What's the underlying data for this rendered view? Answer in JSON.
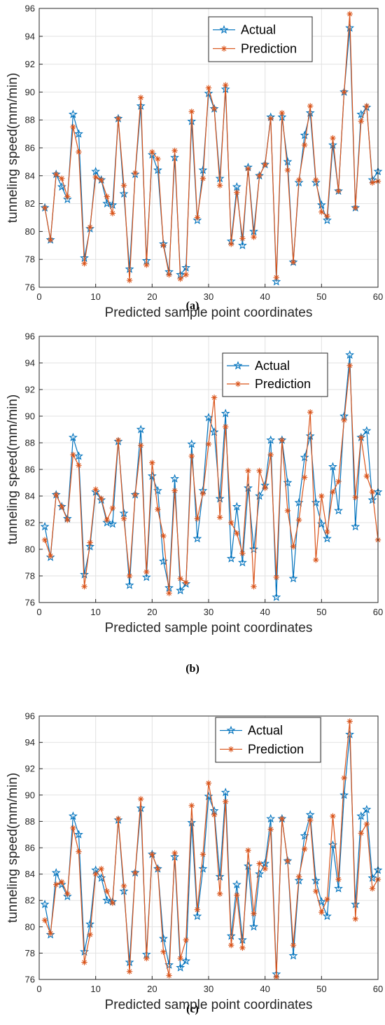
{
  "captions": [
    "(a)",
    "(b)",
    "(c)"
  ],
  "chart_data": [
    {
      "type": "line",
      "panel_label": "(a)",
      "xlabel": "Predicted sample point coordinates",
      "ylabel": "tunneling speed(mm/min)",
      "xlim": [
        0,
        60
      ],
      "ylim": [
        76,
        96
      ],
      "xticks": [
        0,
        10,
        20,
        30,
        40,
        50,
        60
      ],
      "yticks": [
        76,
        78,
        80,
        82,
        84,
        86,
        88,
        90,
        92,
        94,
        96
      ],
      "grid": true,
      "legend": "top-right",
      "x": [
        1,
        2,
        3,
        4,
        5,
        6,
        7,
        8,
        9,
        10,
        11,
        12,
        13,
        14,
        15,
        16,
        17,
        18,
        19,
        20,
        21,
        22,
        23,
        24,
        25,
        26,
        27,
        28,
        29,
        30,
        31,
        32,
        33,
        34,
        35,
        36,
        37,
        38,
        39,
        40,
        41,
        42,
        43,
        44,
        45,
        46,
        47,
        48,
        49,
        50,
        51,
        52,
        53,
        54,
        55,
        56,
        57,
        58,
        59,
        60
      ],
      "series": [
        {
          "name": "Actual",
          "color": "#0072BD",
          "marker": "pentagram",
          "values": [
            81.7,
            79.4,
            84.1,
            83.2,
            82.3,
            88.4,
            87.0,
            78.1,
            80.2,
            84.3,
            83.7,
            82.0,
            81.9,
            88.1,
            82.7,
            77.3,
            84.1,
            89.0,
            77.9,
            85.5,
            84.4,
            79.1,
            77.1,
            85.3,
            76.9,
            77.4,
            87.9,
            80.8,
            84.4,
            89.9,
            88.8,
            83.8,
            90.2,
            79.3,
            83.2,
            79.0,
            84.6,
            80.0,
            84.0,
            84.8,
            88.2,
            76.4,
            88.2,
            85.0,
            77.8,
            83.5,
            86.9,
            88.5,
            83.5,
            81.9,
            80.8,
            86.2,
            82.9,
            90.0,
            94.6,
            81.7,
            88.4,
            88.9,
            83.7,
            84.3
          ]
        },
        {
          "name": "Prediction",
          "color": "#D95319",
          "marker": "asterisk",
          "values": [
            81.7,
            79.4,
            84.1,
            83.8,
            82.5,
            87.5,
            85.7,
            77.7,
            80.3,
            83.9,
            83.7,
            82.5,
            81.3,
            88.1,
            83.3,
            76.5,
            84.2,
            89.6,
            77.6,
            85.7,
            85.2,
            79.0,
            76.9,
            85.8,
            76.6,
            76.9,
            88.6,
            81.0,
            83.8,
            90.3,
            88.8,
            83.3,
            90.5,
            79.1,
            82.8,
            79.5,
            84.5,
            79.6,
            84.0,
            84.8,
            88.1,
            76.7,
            88.5,
            84.4,
            77.8,
            83.7,
            86.2,
            89.0,
            83.7,
            81.4,
            81.1,
            86.7,
            82.9,
            90.0,
            95.6,
            81.7,
            87.9,
            89.0,
            83.5,
            83.6
          ]
        }
      ]
    },
    {
      "type": "line",
      "panel_label": "(b)",
      "xlabel": "Predicted sample point coordinates",
      "ylabel": "tunneling speed(mm/min)",
      "xlim": [
        0,
        60
      ],
      "ylim": [
        76,
        96
      ],
      "xticks": [
        0,
        10,
        20,
        30,
        40,
        50,
        60
      ],
      "yticks": [
        76,
        78,
        80,
        82,
        84,
        86,
        88,
        90,
        92,
        94,
        96
      ],
      "grid": true,
      "legend": "top-right",
      "x": [
        1,
        2,
        3,
        4,
        5,
        6,
        7,
        8,
        9,
        10,
        11,
        12,
        13,
        14,
        15,
        16,
        17,
        18,
        19,
        20,
        21,
        22,
        23,
        24,
        25,
        26,
        27,
        28,
        29,
        30,
        31,
        32,
        33,
        34,
        35,
        36,
        37,
        38,
        39,
        40,
        41,
        42,
        43,
        44,
        45,
        46,
        47,
        48,
        49,
        50,
        51,
        52,
        53,
        54,
        55,
        56,
        57,
        58,
        59,
        60
      ],
      "series": [
        {
          "name": "Actual",
          "color": "#0072BD",
          "marker": "pentagram",
          "values": [
            81.7,
            79.4,
            84.1,
            83.2,
            82.3,
            88.4,
            87.0,
            78.1,
            80.2,
            84.3,
            83.7,
            82.0,
            81.9,
            88.1,
            82.7,
            77.3,
            84.1,
            89.0,
            77.9,
            85.5,
            84.4,
            79.1,
            77.1,
            85.3,
            76.9,
            77.4,
            87.9,
            80.8,
            84.4,
            89.9,
            88.8,
            83.8,
            90.2,
            79.3,
            83.2,
            79.0,
            84.6,
            80.0,
            84.0,
            84.8,
            88.2,
            76.4,
            88.2,
            85.0,
            77.8,
            83.5,
            86.9,
            88.5,
            83.5,
            81.9,
            80.8,
            86.2,
            82.9,
            90.0,
            94.6,
            81.7,
            88.4,
            88.9,
            83.7,
            84.3
          ]
        },
        {
          "name": "Prediction",
          "color": "#D95319",
          "marker": "asterisk",
          "values": [
            80.7,
            79.5,
            84.1,
            83.2,
            82.2,
            87.1,
            86.3,
            77.2,
            80.5,
            84.5,
            83.8,
            82.2,
            83.1,
            88.2,
            82.3,
            78.0,
            84.1,
            87.8,
            78.3,
            86.5,
            83.0,
            81.0,
            76.7,
            84.4,
            77.8,
            77.5,
            87.0,
            82.3,
            84.2,
            87.9,
            91.4,
            82.4,
            89.2,
            82.0,
            81.2,
            79.7,
            85.9,
            77.2,
            85.9,
            84.6,
            87.1,
            77.9,
            88.2,
            82.9,
            80.2,
            82.2,
            85.4,
            90.3,
            79.2,
            84.0,
            81.3,
            84.3,
            85.1,
            89.7,
            93.8,
            83.9,
            88.4,
            85.5,
            84.3,
            80.7
          ]
        }
      ]
    },
    {
      "type": "line",
      "panel_label": "(c)",
      "xlabel": "Predicted sample point coordinates",
      "ylabel": "tunneling speed(mm/min)",
      "xlim": [
        0,
        60
      ],
      "ylim": [
        76,
        96
      ],
      "xticks": [
        0,
        10,
        20,
        30,
        40,
        50,
        60
      ],
      "yticks": [
        76,
        78,
        80,
        82,
        84,
        86,
        88,
        90,
        92,
        94,
        96
      ],
      "grid": true,
      "legend": "top-right",
      "x": [
        1,
        2,
        3,
        4,
        5,
        6,
        7,
        8,
        9,
        10,
        11,
        12,
        13,
        14,
        15,
        16,
        17,
        18,
        19,
        20,
        21,
        22,
        23,
        24,
        25,
        26,
        27,
        28,
        29,
        30,
        31,
        32,
        33,
        34,
        35,
        36,
        37,
        38,
        39,
        40,
        41,
        42,
        43,
        44,
        45,
        46,
        47,
        48,
        49,
        50,
        51,
        52,
        53,
        54,
        55,
        56,
        57,
        58,
        59,
        60
      ],
      "series": [
        {
          "name": "Actual",
          "color": "#0072BD",
          "marker": "pentagram",
          "values": [
            81.7,
            79.4,
            84.1,
            83.2,
            82.3,
            88.4,
            87.0,
            78.1,
            80.2,
            84.3,
            83.7,
            82.0,
            81.9,
            88.1,
            82.7,
            77.3,
            84.1,
            89.0,
            77.9,
            85.5,
            84.4,
            79.1,
            77.1,
            85.3,
            76.9,
            77.4,
            87.9,
            80.8,
            84.4,
            89.9,
            88.8,
            83.8,
            90.2,
            79.3,
            83.2,
            79.0,
            84.6,
            80.0,
            84.0,
            84.8,
            88.2,
            76.4,
            88.2,
            85.0,
            77.8,
            83.5,
            86.9,
            88.5,
            83.5,
            81.9,
            80.8,
            86.2,
            82.9,
            90.0,
            94.6,
            81.7,
            88.4,
            88.9,
            83.7,
            84.3
          ]
        },
        {
          "name": "Prediction",
          "color": "#D95319",
          "marker": "asterisk",
          "values": [
            80.5,
            79.5,
            83.2,
            83.4,
            82.5,
            87.5,
            85.7,
            77.3,
            79.4,
            84.0,
            84.4,
            82.7,
            81.8,
            88.2,
            83.1,
            76.6,
            84.1,
            89.7,
            77.6,
            85.5,
            84.4,
            78.1,
            76.3,
            85.6,
            77.6,
            79.0,
            89.2,
            81.3,
            85.5,
            90.9,
            88.5,
            82.5,
            89.5,
            78.6,
            82.4,
            78.4,
            85.8,
            81.0,
            84.8,
            84.4,
            87.4,
            76.2,
            88.2,
            85.0,
            78.6,
            83.8,
            85.9,
            88.1,
            82.7,
            81.1,
            82.1,
            88.4,
            83.6,
            91.3,
            95.6,
            80.6,
            87.1,
            87.8,
            82.9,
            83.6
          ]
        }
      ]
    }
  ]
}
